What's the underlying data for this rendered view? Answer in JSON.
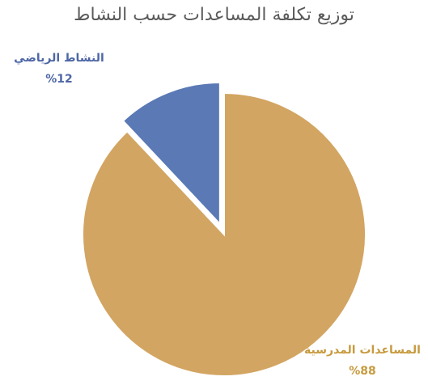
{
  "chart_data": {
    "type": "pie",
    "title": "توزيع تكلفة المساعدات حسب النشاط",
    "slices": [
      {
        "label": "النشاط الرياضي",
        "value": 12,
        "value_label": "%12",
        "color": "#5b79b5"
      },
      {
        "label": "المساعدات المدرسية",
        "value": 88,
        "value_label": "%88",
        "color": "#d2a562"
      }
    ],
    "start": "12 o'clock",
    "direction": "counterclockwise",
    "exploded": "النشاط الرياضي"
  }
}
